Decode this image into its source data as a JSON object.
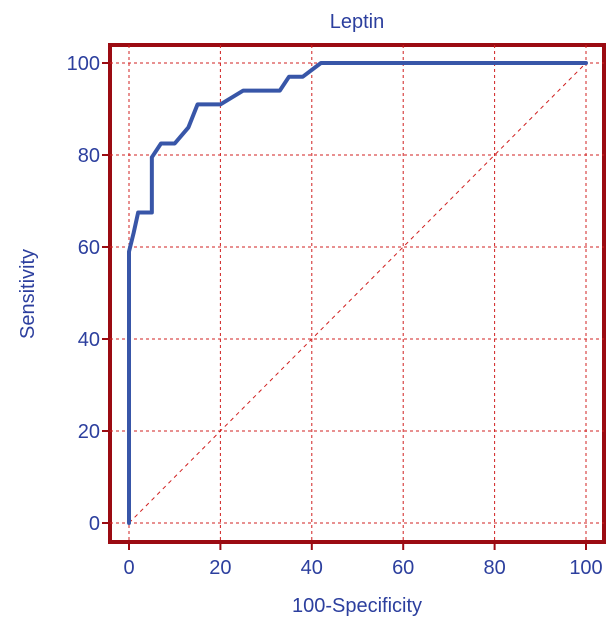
{
  "chart_data": {
    "type": "line",
    "title": "Leptin",
    "xlabel": "100-Specificity",
    "ylabel": "Sensitivity",
    "xlim": [
      0,
      100
    ],
    "ylim": [
      0,
      100
    ],
    "x_ticks": [
      0,
      20,
      40,
      60,
      80,
      100
    ],
    "y_ticks": [
      0,
      20,
      40,
      60,
      80,
      100
    ],
    "grid": true,
    "series": [
      {
        "x": [
          0,
          0,
          1,
          2,
          4,
          5,
          5,
          7,
          10,
          13,
          15,
          20,
          25,
          30,
          33,
          35,
          38,
          42,
          100
        ],
        "y": [
          0,
          59,
          63,
          67.5,
          67.5,
          67.5,
          79.5,
          82.5,
          82.5,
          86,
          91,
          91,
          94,
          94,
          94,
          97,
          97,
          100,
          100
        ]
      }
    ],
    "reference_line": {
      "x": [
        0,
        100
      ],
      "y": [
        0,
        100
      ]
    },
    "colors": {
      "frame": "#9b0b12",
      "grid": "#d02020",
      "series": "#3856a8",
      "text": "#2c3f9e",
      "reference": "#d02020"
    }
  }
}
